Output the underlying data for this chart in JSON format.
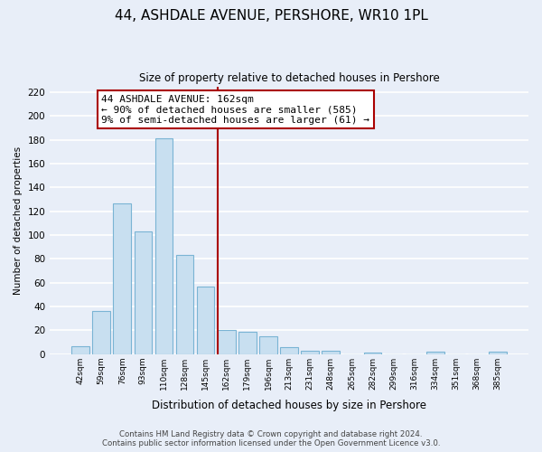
{
  "title": "44, ASHDALE AVENUE, PERSHORE, WR10 1PL",
  "subtitle": "Size of property relative to detached houses in Pershore",
  "xlabel": "Distribution of detached houses by size in Pershore",
  "ylabel": "Number of detached properties",
  "bar_labels": [
    "42sqm",
    "59sqm",
    "76sqm",
    "93sqm",
    "110sqm",
    "128sqm",
    "145sqm",
    "162sqm",
    "179sqm",
    "196sqm",
    "213sqm",
    "231sqm",
    "248sqm",
    "265sqm",
    "282sqm",
    "299sqm",
    "316sqm",
    "334sqm",
    "351sqm",
    "368sqm",
    "385sqm"
  ],
  "bar_values": [
    7,
    36,
    127,
    103,
    181,
    83,
    57,
    20,
    19,
    15,
    6,
    3,
    3,
    0,
    1,
    0,
    0,
    2,
    0,
    0,
    2
  ],
  "bar_color": "#c8dff0",
  "bar_edge_color": "#7ab4d4",
  "highlight_index": 7,
  "highlight_line_color": "#aa0000",
  "annotation_line1": "44 ASHDALE AVENUE: 162sqm",
  "annotation_line2": "← 90% of detached houses are smaller (585)",
  "annotation_line3": "9% of semi-detached houses are larger (61) →",
  "annotation_box_color": "#ffffff",
  "annotation_box_edge_color": "#aa0000",
  "ylim": [
    0,
    225
  ],
  "yticks": [
    0,
    20,
    40,
    60,
    80,
    100,
    120,
    140,
    160,
    180,
    200,
    220
  ],
  "footer_line1": "Contains HM Land Registry data © Crown copyright and database right 2024.",
  "footer_line2": "Contains public sector information licensed under the Open Government Licence v3.0.",
  "bg_color": "#e8eef8",
  "grid_color": "#ffffff",
  "title_fontsize": 11,
  "subtitle_fontsize": 8.5,
  "annotation_fontsize": 8.0,
  "xlabel_fontsize": 8.5,
  "ylabel_fontsize": 7.5
}
